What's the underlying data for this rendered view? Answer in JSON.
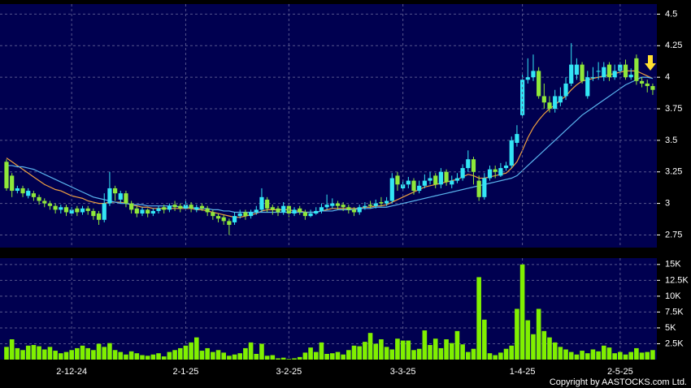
{
  "chart_data": [
    {
      "type": "candlestick",
      "ylim": [
        2.65,
        4.58
      ],
      "yticks": [
        2.75,
        3,
        3.25,
        3.5,
        3.75,
        4,
        4.25,
        4.5
      ],
      "grid": true,
      "up_color": "#33e6f5",
      "down_color": "#8fe83a",
      "open": [
        3.33,
        3.22,
        3.1,
        3.12,
        3.06,
        3.08,
        3.05,
        3.02,
        3.0,
        2.98,
        2.95,
        2.97,
        2.92,
        2.96,
        2.93,
        2.96,
        2.94,
        2.92,
        2.87,
        3.0,
        3.12,
        3.03,
        3.08,
        3.0,
        2.96,
        2.92,
        2.95,
        2.92,
        2.94,
        2.97,
        2.95,
        2.99,
        2.98,
        2.96,
        2.99,
        2.95,
        2.98,
        2.96,
        2.93,
        2.9,
        2.89,
        2.86,
        2.85,
        2.9,
        2.93,
        2.9,
        2.93,
        2.95,
        3.03,
        2.97,
        2.96,
        2.93,
        2.98,
        2.92,
        2.96,
        2.93,
        2.9,
        2.92,
        2.94,
        2.97,
        2.98,
        3.0,
        2.99,
        2.97,
        2.95,
        2.93,
        2.97,
        2.99,
        2.98,
        3.01,
        3.0,
        3.02,
        3.22,
        3.12,
        3.15,
        3.18,
        3.1,
        3.14,
        3.18,
        3.22,
        3.15,
        3.25,
        3.15,
        3.18,
        3.2,
        3.28,
        3.35,
        3.18,
        3.05,
        3.2,
        3.27,
        3.22,
        3.28,
        3.3,
        3.48,
        3.7,
        3.98,
        4.0,
        4.05,
        3.85,
        3.8,
        3.75,
        3.8,
        3.85,
        3.95,
        4.02,
        4.1,
        3.85,
        4.0,
        4.05,
        4.0,
        4.1,
        4.0,
        4.05,
        4.1,
        4.0,
        4.15,
        3.97,
        3.95,
        3.93
      ],
      "high": [
        3.35,
        3.24,
        3.14,
        3.14,
        3.12,
        3.1,
        3.07,
        3.04,
        3.02,
        3.0,
        2.99,
        2.99,
        2.97,
        2.98,
        2.98,
        2.98,
        2.96,
        2.94,
        3.08,
        3.25,
        3.14,
        3.1,
        3.1,
        3.02,
        2.98,
        2.97,
        2.96,
        2.96,
        2.98,
        2.99,
        3.0,
        3.02,
        3.0,
        3.03,
        3.01,
        2.99,
        3.0,
        2.98,
        2.95,
        2.92,
        2.91,
        2.88,
        2.93,
        2.95,
        2.95,
        2.95,
        2.98,
        3.12,
        3.05,
        2.99,
        2.98,
        3.01,
        3.0,
        2.97,
        2.98,
        2.95,
        2.95,
        2.97,
        3.0,
        3.07,
        3.04,
        3.02,
        3.01,
        2.99,
        2.97,
        2.99,
        3.01,
        3.02,
        3.03,
        3.05,
        3.05,
        3.24,
        3.25,
        3.19,
        3.21,
        3.2,
        3.18,
        3.23,
        3.25,
        3.24,
        3.28,
        3.27,
        3.22,
        3.24,
        3.31,
        3.42,
        3.37,
        3.22,
        3.24,
        3.3,
        3.3,
        3.32,
        3.33,
        3.53,
        3.62,
        4.02,
        4.15,
        4.18,
        4.08,
        3.95,
        3.85,
        3.9,
        3.92,
        4.0,
        4.27,
        4.15,
        4.12,
        4.05,
        4.08,
        4.12,
        4.12,
        4.12,
        4.1,
        4.12,
        4.14,
        4.07,
        4.18,
        4.0,
        3.98,
        3.95
      ],
      "low": [
        3.1,
        3.05,
        3.08,
        3.05,
        3.04,
        3.02,
        2.99,
        2.97,
        2.95,
        2.92,
        2.92,
        2.9,
        2.9,
        2.9,
        2.91,
        2.91,
        2.87,
        2.83,
        2.85,
        2.98,
        3.02,
        3.0,
        2.97,
        2.92,
        2.89,
        2.9,
        2.89,
        2.9,
        2.92,
        2.92,
        2.93,
        2.94,
        2.93,
        2.94,
        2.93,
        2.93,
        2.94,
        2.9,
        2.87,
        2.85,
        2.83,
        2.75,
        2.83,
        2.88,
        2.87,
        2.88,
        2.91,
        2.93,
        2.93,
        2.91,
        2.9,
        2.91,
        2.89,
        2.9,
        2.91,
        2.87,
        2.89,
        2.91,
        2.92,
        2.95,
        2.96,
        2.95,
        2.94,
        2.92,
        2.9,
        2.91,
        2.95,
        2.96,
        2.96,
        2.98,
        2.98,
        3.0,
        3.1,
        3.1,
        3.12,
        3.07,
        3.08,
        3.12,
        3.15,
        3.12,
        3.12,
        3.14,
        3.12,
        3.16,
        3.18,
        3.25,
        3.15,
        3.02,
        3.03,
        3.18,
        3.2,
        3.21,
        3.26,
        3.28,
        3.45,
        3.68,
        3.95,
        3.97,
        3.83,
        3.75,
        3.72,
        3.72,
        3.77,
        3.82,
        3.93,
        3.98,
        3.95,
        3.83,
        3.97,
        3.98,
        3.97,
        3.97,
        3.98,
        4.02,
        3.98,
        3.98,
        3.94,
        3.92,
        3.88,
        3.86
      ],
      "close": [
        3.12,
        3.1,
        3.12,
        3.08,
        3.1,
        3.05,
        3.02,
        3.0,
        2.98,
        2.95,
        2.97,
        2.93,
        2.95,
        2.93,
        2.96,
        2.94,
        2.9,
        2.87,
        3.0,
        3.12,
        3.08,
        3.08,
        3.0,
        2.95,
        2.92,
        2.95,
        2.92,
        2.94,
        2.96,
        2.95,
        2.98,
        2.97,
        2.96,
        2.99,
        2.96,
        2.97,
        2.96,
        2.93,
        2.9,
        2.88,
        2.86,
        2.83,
        2.9,
        2.92,
        2.9,
        2.93,
        2.95,
        3.05,
        2.96,
        2.95,
        2.93,
        2.98,
        2.92,
        2.95,
        2.93,
        2.9,
        2.92,
        2.94,
        2.97,
        2.99,
        3.0,
        2.98,
        2.97,
        2.95,
        2.93,
        2.97,
        2.98,
        2.98,
        3.0,
        3.0,
        3.02,
        3.2,
        3.15,
        3.15,
        3.18,
        3.1,
        3.14,
        3.18,
        3.2,
        3.15,
        3.25,
        3.17,
        3.18,
        3.2,
        3.28,
        3.35,
        3.25,
        3.05,
        3.2,
        3.27,
        3.25,
        3.28,
        3.3,
        3.5,
        3.55,
        3.98,
        4.0,
        4.05,
        3.85,
        3.8,
        3.75,
        3.85,
        3.85,
        3.95,
        4.1,
        4.1,
        3.97,
        4.0,
        4.0,
        4.05,
        4.08,
        4.0,
        4.05,
        4.1,
        4.0,
        4.02,
        3.97,
        3.95,
        3.93,
        3.9
      ],
      "lines": [
        {
          "color": "#f0a040",
          "values": [
            3.36,
            3.33,
            3.3,
            3.27,
            3.24,
            3.21,
            3.18,
            3.15,
            3.13,
            3.11,
            3.1,
            3.08,
            3.06,
            3.05,
            3.04,
            3.02,
            3.01,
            3.0,
            3.0,
            3.01,
            3.01,
            3.01,
            3.0,
            2.99,
            2.98,
            2.97,
            2.97,
            2.96,
            2.96,
            2.96,
            2.96,
            2.96,
            2.96,
            2.96,
            2.96,
            2.95,
            2.95,
            2.94,
            2.93,
            2.92,
            2.91,
            2.9,
            2.89,
            2.89,
            2.9,
            2.91,
            2.92,
            2.94,
            2.95,
            2.95,
            2.95,
            2.95,
            2.95,
            2.94,
            2.94,
            2.93,
            2.93,
            2.93,
            2.94,
            2.95,
            2.96,
            2.96,
            2.96,
            2.96,
            2.96,
            2.96,
            2.97,
            2.97,
            2.98,
            2.98,
            2.99,
            3.01,
            3.03,
            3.05,
            3.07,
            3.09,
            3.11,
            3.13,
            3.14,
            3.15,
            3.16,
            3.17,
            3.18,
            3.19,
            3.21,
            3.23,
            3.22,
            3.2,
            3.2,
            3.21,
            3.22,
            3.23,
            3.24,
            3.28,
            3.33,
            3.42,
            3.52,
            3.6,
            3.66,
            3.71,
            3.75,
            3.78,
            3.82,
            3.85,
            3.9,
            3.94,
            3.97,
            3.98,
            3.99,
            4.0,
            4.01,
            4.02,
            4.03,
            4.04,
            4.05,
            4.05,
            4.05,
            4.03,
            4.01,
            3.99
          ]
        },
        {
          "color": "#5ab4ee",
          "values": [
            3.3,
            3.3,
            3.29,
            3.29,
            3.28,
            3.27,
            3.25,
            3.23,
            3.21,
            3.19,
            3.17,
            3.15,
            3.13,
            3.11,
            3.09,
            3.07,
            3.05,
            3.04,
            3.03,
            3.02,
            3.01,
            3.0,
            3.0,
            2.99,
            2.99,
            2.99,
            2.98,
            2.98,
            2.98,
            2.98,
            2.98,
            2.98,
            2.97,
            2.97,
            2.97,
            2.96,
            2.96,
            2.96,
            2.95,
            2.95,
            2.94,
            2.94,
            2.93,
            2.93,
            2.93,
            2.93,
            2.93,
            2.93,
            2.93,
            2.93,
            2.93,
            2.93,
            2.93,
            2.93,
            2.93,
            2.93,
            2.93,
            2.93,
            2.94,
            2.94,
            2.94,
            2.95,
            2.95,
            2.95,
            2.95,
            2.96,
            2.96,
            2.96,
            2.97,
            2.97,
            2.97,
            2.98,
            2.99,
            3.0,
            3.01,
            3.02,
            3.03,
            3.04,
            3.05,
            3.06,
            3.07,
            3.08,
            3.09,
            3.1,
            3.11,
            3.12,
            3.13,
            3.14,
            3.15,
            3.16,
            3.17,
            3.18,
            3.19,
            3.2,
            3.22,
            3.26,
            3.3,
            3.34,
            3.38,
            3.42,
            3.46,
            3.5,
            3.54,
            3.58,
            3.62,
            3.66,
            3.7,
            3.73,
            3.76,
            3.79,
            3.82,
            3.85,
            3.88,
            3.91,
            3.94,
            3.96,
            3.98,
            4.0,
            4.0,
            3.99
          ]
        }
      ]
    },
    {
      "type": "bar",
      "color": "#80f000",
      "ylim": [
        0,
        16000
      ],
      "yticks": [
        {
          "value": 2500,
          "label": "2.5K"
        },
        {
          "value": 5000,
          "label": "5K"
        },
        {
          "value": 7500,
          "label": "7.5K"
        },
        {
          "value": 10000,
          "label": "10K"
        },
        {
          "value": 12500,
          "label": "12.5K"
        },
        {
          "value": 15000,
          "label": "15K"
        }
      ],
      "grid": true,
      "categories": [
        null,
        null,
        null,
        null,
        null,
        null,
        null,
        null,
        null,
        null,
        null,
        null,
        "2-12-24",
        null,
        null,
        null,
        null,
        null,
        null,
        null,
        null,
        null,
        null,
        null,
        null,
        null,
        null,
        null,
        null,
        null,
        null,
        null,
        null,
        "2-1-25",
        null,
        null,
        null,
        null,
        null,
        null,
        null,
        null,
        null,
        null,
        null,
        null,
        null,
        null,
        null,
        null,
        null,
        null,
        "3-2-25",
        null,
        null,
        null,
        null,
        null,
        null,
        null,
        null,
        null,
        null,
        null,
        null,
        null,
        null,
        null,
        null,
        null,
        null,
        null,
        null,
        "3-3-25",
        null,
        null,
        null,
        null,
        null,
        null,
        null,
        null,
        null,
        null,
        null,
        null,
        null,
        null,
        null,
        null,
        null,
        null,
        null,
        null,
        null,
        "1-4-25",
        null,
        null,
        null,
        null,
        null,
        null,
        null,
        null,
        null,
        null,
        null,
        null,
        null,
        null,
        null,
        null,
        null,
        "2-5-25",
        null,
        null,
        null,
        null,
        null,
        null
      ],
      "values": [
        2000,
        3200,
        1800,
        1500,
        2200,
        2300,
        2100,
        1600,
        2000,
        1400,
        1000,
        1200,
        1500,
        1800,
        2200,
        1800,
        1500,
        2500,
        2000,
        2600,
        1500,
        1200,
        800,
        1300,
        1000,
        700,
        600,
        800,
        1000,
        500,
        1200,
        1500,
        1800,
        2200,
        2700,
        3500,
        1400,
        1800,
        1200,
        1500,
        1100,
        600,
        800,
        1000,
        1800,
        2700,
        900,
        2500,
        600,
        700,
        200,
        300,
        100,
        200,
        400,
        1100,
        1900,
        1200,
        2700,
        900,
        1000,
        1200,
        800,
        1500,
        2200,
        2100,
        2800,
        4200,
        2500,
        3200,
        2000,
        1600,
        3300,
        3000,
        3000,
        1500,
        1700,
        4600,
        2300,
        3300,
        1800,
        3200,
        2600,
        4500,
        2400,
        1200,
        1700,
        13000,
        6300,
        1000,
        700,
        1100,
        1700,
        2200,
        8000,
        15000,
        6200,
        4000,
        8000,
        4500,
        3500,
        2700,
        2000,
        1600,
        1200,
        800,
        1400,
        1000,
        1600,
        1300,
        2200,
        1900,
        1000,
        1200,
        800,
        1200,
        1800,
        1100,
        1200,
        1500
      ]
    }
  ],
  "copyright": "Copyright by AASTOCKS.com Ltd."
}
